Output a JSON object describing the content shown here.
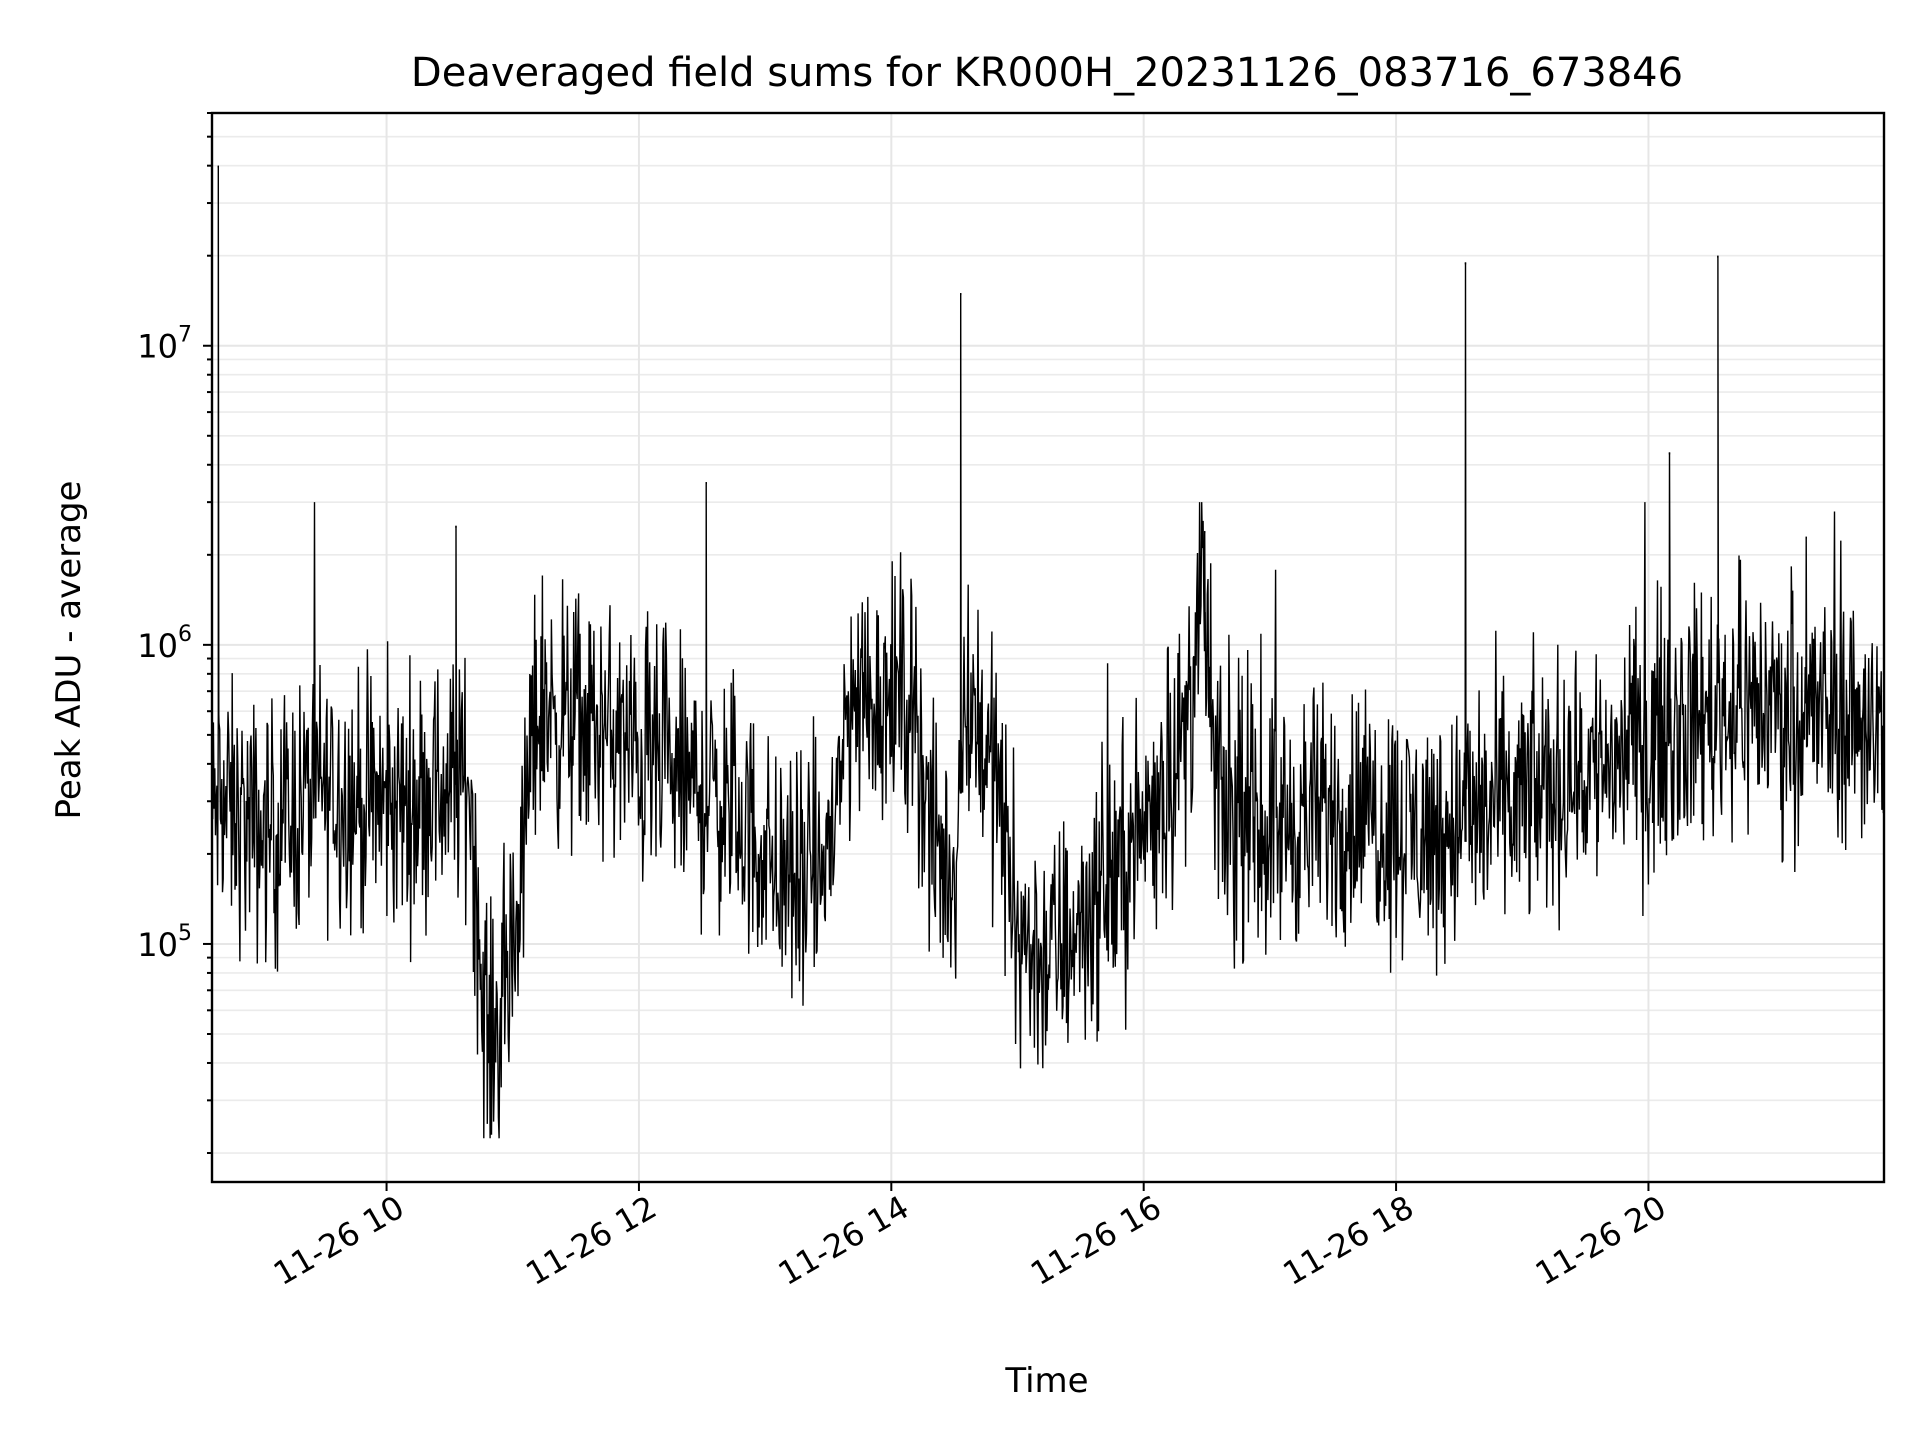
{
  "chart_data": {
    "type": "line",
    "title": "Deaveraged field sums for KR000H_20231126_083716_673846",
    "xlabel": "Time",
    "ylabel": "Peak ADU - average",
    "yscale": "log",
    "grid": true,
    "x_tick_labels": [
      "11-26 10",
      "11-26 12",
      "11-26 14",
      "11-26 16",
      "11-26 18",
      "11-26 20"
    ],
    "x_ticks": [
      "2023-11-26 10:00",
      "2023-11-26 12:00",
      "2023-11-26 14:00",
      "2023-11-26 16:00",
      "2023-11-26 18:00",
      "2023-11-26 20:00"
    ],
    "y_tick_labels": [
      {
        "base": "10",
        "exp": "5"
      },
      {
        "base": "10",
        "exp": "6"
      },
      {
        "base": "10",
        "exp": "7"
      }
    ],
    "y_ticks": [
      100000,
      1000000,
      10000000
    ],
    "xlim": [
      "2023-11-26 08:37",
      "2023-11-26 21:52"
    ],
    "ylim": [
      16000,
      60000000
    ],
    "series": [
      {
        "color": "#000000",
        "x": [
          "2023-11-26 08:37",
          "2023-11-26 08:40",
          "2023-11-26 08:50",
          "2023-11-26 09:00",
          "2023-11-26 09:10",
          "2023-11-26 09:20",
          "2023-11-26 09:30",
          "2023-11-26 09:40",
          "2023-11-26 09:50",
          "2023-11-26 10:00",
          "2023-11-26 10:10",
          "2023-11-26 10:20",
          "2023-11-26 10:30",
          "2023-11-26 10:40",
          "2023-11-26 10:45",
          "2023-11-26 10:50",
          "2023-11-26 10:55",
          "2023-11-26 11:00",
          "2023-11-26 11:05",
          "2023-11-26 11:10",
          "2023-11-26 11:15",
          "2023-11-26 11:20",
          "2023-11-26 11:30",
          "2023-11-26 11:40",
          "2023-11-26 11:50",
          "2023-11-26 12:00",
          "2023-11-26 12:10",
          "2023-11-26 12:20",
          "2023-11-26 12:30",
          "2023-11-26 12:40",
          "2023-11-26 12:50",
          "2023-11-26 13:00",
          "2023-11-26 13:10",
          "2023-11-26 13:20",
          "2023-11-26 13:30",
          "2023-11-26 13:40",
          "2023-11-26 13:50",
          "2023-11-26 14:00",
          "2023-11-26 14:10",
          "2023-11-26 14:20",
          "2023-11-26 14:30",
          "2023-11-26 14:35",
          "2023-11-26 14:40",
          "2023-11-26 14:50",
          "2023-11-26 15:00",
          "2023-11-26 15:10",
          "2023-11-26 15:20",
          "2023-11-26 15:30",
          "2023-11-26 15:40",
          "2023-11-26 15:50",
          "2023-11-26 16:00",
          "2023-11-26 16:10",
          "2023-11-26 16:20",
          "2023-11-26 16:28",
          "2023-11-26 16:35",
          "2023-11-26 16:45",
          "2023-11-26 17:00",
          "2023-11-26 17:15",
          "2023-11-26 17:30",
          "2023-11-26 17:45",
          "2023-11-26 18:00",
          "2023-11-26 18:15",
          "2023-11-26 18:30",
          "2023-11-26 18:45",
          "2023-11-26 19:00",
          "2023-11-26 19:15",
          "2023-11-26 19:30",
          "2023-11-26 19:45",
          "2023-11-26 20:00",
          "2023-11-26 20:15",
          "2023-11-26 20:30",
          "2023-11-26 20:45",
          "2023-11-26 21:00",
          "2023-11-26 21:15",
          "2023-11-26 21:30",
          "2023-11-26 21:45",
          "2023-11-26 21:52"
        ],
        "y": [
          250000,
          300000,
          260000,
          230000,
          250000,
          300000,
          330000,
          320000,
          290000,
          280000,
          300000,
          320000,
          340000,
          350000,
          70000,
          45000,
          60000,
          90000,
          200000,
          550000,
          650000,
          600000,
          550000,
          520000,
          480000,
          420000,
          380000,
          350000,
          320000,
          300000,
          250000,
          200000,
          160000,
          150000,
          200000,
          600000,
          700000,
          650000,
          700000,
          200000,
          170000,
          700000,
          600000,
          350000,
          110000,
          90000,
          95000,
          120000,
          150000,
          180000,
          250000,
          350000,
          500000,
          1500000,
          300000,
          250000,
          250000,
          260000,
          270000,
          280000,
          250000,
          230000,
          260000,
          280000,
          300000,
          340000,
          380000,
          420000,
          480000,
          550000,
          600000,
          650000,
          620000,
          600000,
          580000,
          560000,
          500000
        ],
        "spikes": [
          {
            "x": "2023-11-26 08:40",
            "y": 40000000
          },
          {
            "x": "2023-11-26 10:33",
            "y": 2500000
          },
          {
            "x": "2023-11-26 12:32",
            "y": 3500000
          },
          {
            "x": "2023-11-26 14:33",
            "y": 15000000
          },
          {
            "x": "2023-11-26 16:29",
            "y": 2400000
          },
          {
            "x": "2023-11-26 18:33",
            "y": 19000000
          },
          {
            "x": "2023-11-26 20:10",
            "y": 4400000
          },
          {
            "x": "2023-11-26 20:33",
            "y": 20000000
          },
          {
            "x": "2023-11-26 21:15",
            "y": 2300000
          }
        ]
      }
    ]
  }
}
